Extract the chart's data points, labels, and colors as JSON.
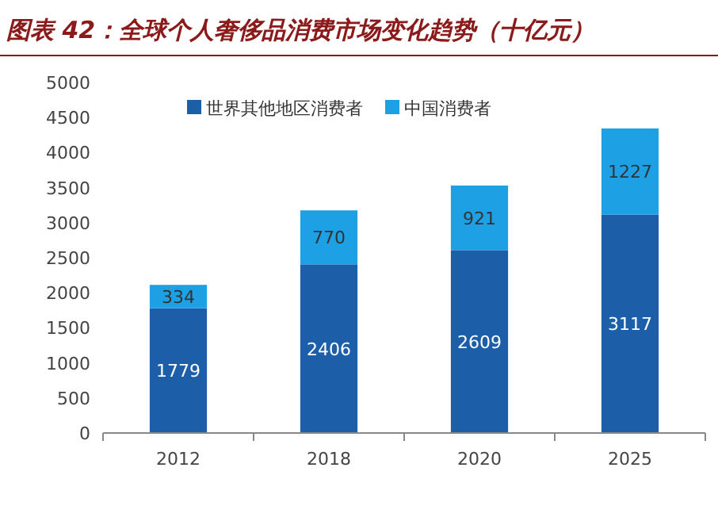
{
  "chart_data": {
    "type": "bar",
    "title": "图表 42：全球个人奢侈品消费市场变化趋势（十亿元）",
    "categories": [
      "2012",
      "2018",
      "2020",
      "2025"
    ],
    "stacked": true,
    "data_labels": true,
    "legend": "top",
    "ylim": [
      0,
      5000
    ],
    "yticks": [
      0,
      500,
      1000,
      1500,
      2000,
      2500,
      3000,
      3500,
      4000,
      4500,
      5000
    ],
    "series": [
      {
        "name": "世界其他地区消费者",
        "color": "#1c5fa8",
        "values": [
          1779,
          2406,
          2609,
          3117
        ]
      },
      {
        "name": "中国消费者",
        "color": "#1ea1e4",
        "values": [
          334,
          770,
          921,
          1227
        ]
      }
    ]
  }
}
